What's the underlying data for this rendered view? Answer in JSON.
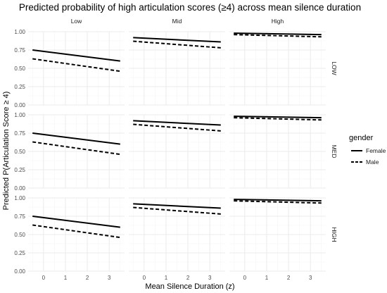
{
  "chart_data": {
    "type": "line",
    "title": "Predicted probability of high articulation scores (≥4) across mean silence duration",
    "xlabel": "Mean Silence Duration (z)",
    "ylabel": "Predicted P(Articulation Score ≥ 4)",
    "xlim": [
      -0.7,
      3.7
    ],
    "ylim": [
      0.0,
      1.0
    ],
    "x_ticks": [
      0,
      1,
      2,
      3
    ],
    "y_ticks": [
      0.0,
      0.25,
      0.5,
      0.75,
      1.0
    ],
    "y_tick_labels": [
      "0.00",
      "0.25",
      "0.50",
      "0.75",
      "1.00"
    ],
    "grid": true,
    "facet_columns": [
      "Low",
      "Mid",
      "High"
    ],
    "facet_rows": [
      "LOW",
      "MED",
      "HIGH"
    ],
    "legend": {
      "title": "gender",
      "position": "right",
      "entries": [
        {
          "label": "Female",
          "linetype": "solid"
        },
        {
          "label": "Male",
          "linetype": "dashed"
        }
      ]
    },
    "colors": {
      "line": "#000000",
      "strip_text": "#1a1a1a",
      "grid_major": "#ebebeb",
      "grid_minor": "#f5f5f5",
      "axis_text": "#4d4d4d"
    },
    "panels": [
      {
        "row": "LOW",
        "col": "Low",
        "series": [
          {
            "name": "Female",
            "x": [
              -0.5,
              3.5
            ],
            "y": [
              0.75,
              0.6
            ]
          },
          {
            "name": "Male",
            "x": [
              -0.5,
              3.5
            ],
            "y": [
              0.63,
              0.46
            ]
          }
        ]
      },
      {
        "row": "LOW",
        "col": "Mid",
        "series": [
          {
            "name": "Female",
            "x": [
              -0.5,
              3.5
            ],
            "y": [
              0.92,
              0.86
            ]
          },
          {
            "name": "Male",
            "x": [
              -0.5,
              3.5
            ],
            "y": [
              0.87,
              0.78
            ]
          }
        ]
      },
      {
        "row": "LOW",
        "col": "High",
        "series": [
          {
            "name": "Female",
            "x": [
              -0.5,
              3.5
            ],
            "y": [
              0.98,
              0.96
            ]
          },
          {
            "name": "Male",
            "x": [
              -0.5,
              3.5
            ],
            "y": [
              0.96,
              0.93
            ]
          }
        ]
      },
      {
        "row": "MED",
        "col": "Low",
        "series": [
          {
            "name": "Female",
            "x": [
              -0.5,
              3.5
            ],
            "y": [
              0.75,
              0.6
            ]
          },
          {
            "name": "Male",
            "x": [
              -0.5,
              3.5
            ],
            "y": [
              0.63,
              0.46
            ]
          }
        ]
      },
      {
        "row": "MED",
        "col": "Mid",
        "series": [
          {
            "name": "Female",
            "x": [
              -0.5,
              3.5
            ],
            "y": [
              0.92,
              0.86
            ]
          },
          {
            "name": "Male",
            "x": [
              -0.5,
              3.5
            ],
            "y": [
              0.87,
              0.78
            ]
          }
        ]
      },
      {
        "row": "MED",
        "col": "High",
        "series": [
          {
            "name": "Female",
            "x": [
              -0.5,
              3.5
            ],
            "y": [
              0.98,
              0.96
            ]
          },
          {
            "name": "Male",
            "x": [
              -0.5,
              3.5
            ],
            "y": [
              0.96,
              0.93
            ]
          }
        ]
      },
      {
        "row": "HIGH",
        "col": "Low",
        "series": [
          {
            "name": "Female",
            "x": [
              -0.5,
              3.5
            ],
            "y": [
              0.75,
              0.6
            ]
          },
          {
            "name": "Male",
            "x": [
              -0.5,
              3.5
            ],
            "y": [
              0.63,
              0.46
            ]
          }
        ]
      },
      {
        "row": "HIGH",
        "col": "Mid",
        "series": [
          {
            "name": "Female",
            "x": [
              -0.5,
              3.5
            ],
            "y": [
              0.92,
              0.86
            ]
          },
          {
            "name": "Male",
            "x": [
              -0.5,
              3.5
            ],
            "y": [
              0.87,
              0.78
            ]
          }
        ]
      },
      {
        "row": "HIGH",
        "col": "High",
        "series": [
          {
            "name": "Female",
            "x": [
              -0.5,
              3.5
            ],
            "y": [
              0.98,
              0.96
            ]
          },
          {
            "name": "Male",
            "x": [
              -0.5,
              3.5
            ],
            "y": [
              0.96,
              0.93
            ]
          }
        ]
      }
    ]
  }
}
